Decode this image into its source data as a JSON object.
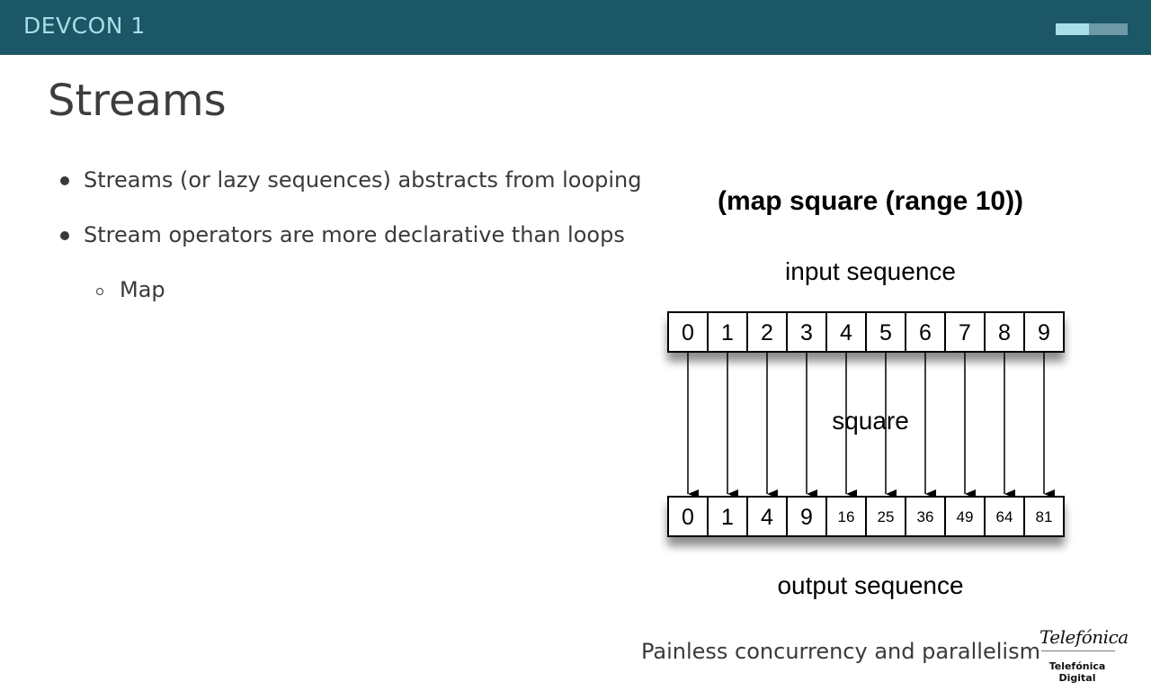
{
  "header": {
    "brand": "DEVCON 1",
    "progress": 0.46
  },
  "slide": {
    "title": "Streams",
    "bullets": [
      {
        "text": "Streams (or lazy sequences) abstracts from looping",
        "level": 1
      },
      {
        "text": "Stream operators are more declarative than loops",
        "level": 1
      },
      {
        "text": "Map",
        "level": 2
      }
    ]
  },
  "diagram": {
    "expression": "(map square (range 10))",
    "input_label": "input sequence",
    "function_label": "square",
    "output_label": "output sequence",
    "inputs": [
      "0",
      "1",
      "2",
      "3",
      "4",
      "5",
      "6",
      "7",
      "8",
      "9"
    ],
    "outputs": [
      "0",
      "1",
      "4",
      "9",
      "16",
      "25",
      "36",
      "49",
      "64",
      "81"
    ]
  },
  "footer": {
    "text": "Painless concurrency and parallelism",
    "logo_script": "Telefónica",
    "logo_text": "Telefónica Digital"
  },
  "colors": {
    "header_bg": "#1b5766",
    "accent": "#a9dde8"
  }
}
